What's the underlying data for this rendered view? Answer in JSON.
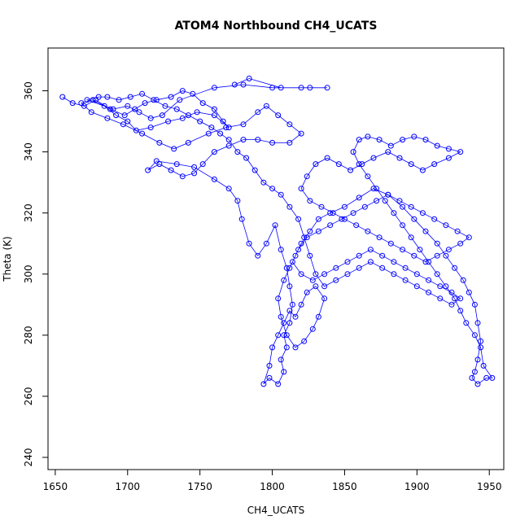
{
  "chart_data": {
    "type": "scatter",
    "title": "ATOM4 Northbound CH4_UCATS",
    "xlabel": "CH4_UCATS",
    "ylabel": "Theta (K)",
    "xlim": [
      1645,
      1960
    ],
    "ylim": [
      236,
      374
    ],
    "xticks": [
      1650,
      1700,
      1750,
      1800,
      1850,
      1900,
      1950
    ],
    "yticks": [
      240,
      260,
      280,
      300,
      320,
      340,
      360
    ],
    "grid": false,
    "legend": "none",
    "color": "#0000ff",
    "series": [
      {
        "values": [
          [
            1655,
            358
          ],
          [
            1662,
            356
          ],
          [
            1670,
            355
          ],
          [
            1678,
            357
          ],
          [
            1688,
            354
          ],
          [
            1698,
            352
          ],
          [
            1705,
            354
          ],
          [
            1712,
            356
          ],
          [
            1720,
            357
          ],
          [
            1730,
            358
          ],
          [
            1738,
            360
          ],
          [
            1745,
            359
          ],
          [
            1752,
            356
          ],
          [
            1760,
            354
          ],
          [
            1766,
            350
          ],
          [
            1770,
            348
          ],
          [
            1760,
            352
          ],
          [
            1748,
            353
          ],
          [
            1738,
            351
          ],
          [
            1728,
            350
          ],
          [
            1716,
            348
          ],
          [
            1706,
            347
          ],
          [
            1700,
            350
          ],
          [
            1692,
            352
          ],
          [
            1684,
            355
          ],
          [
            1676,
            357
          ],
          [
            1668,
            356
          ],
          [
            1675,
            353
          ],
          [
            1686,
            351
          ],
          [
            1697,
            349
          ],
          [
            1710,
            346
          ],
          [
            1722,
            343
          ],
          [
            1732,
            341
          ],
          [
            1742,
            343
          ],
          [
            1756,
            346
          ],
          [
            1768,
            348
          ],
          [
            1780,
            349
          ],
          [
            1790,
            353
          ],
          [
            1796,
            355
          ],
          [
            1804,
            352
          ],
          [
            1812,
            349
          ],
          [
            1820,
            346
          ],
          [
            1812,
            343
          ],
          [
            1800,
            343
          ],
          [
            1790,
            344
          ],
          [
            1780,
            344
          ],
          [
            1770,
            342
          ],
          [
            1760,
            340
          ],
          [
            1752,
            336
          ],
          [
            1746,
            333
          ],
          [
            1738,
            332
          ],
          [
            1730,
            334
          ],
          [
            1722,
            336
          ],
          [
            1714,
            334
          ],
          [
            1720,
            337
          ],
          [
            1734,
            336
          ],
          [
            1746,
            335
          ],
          [
            1760,
            331
          ],
          [
            1770,
            328
          ],
          [
            1776,
            324
          ],
          [
            1779,
            318
          ],
          [
            1784,
            310
          ],
          [
            1790,
            306
          ],
          [
            1796,
            310
          ],
          [
            1802,
            316
          ],
          [
            1806,
            308
          ],
          [
            1810,
            302
          ],
          [
            1812,
            296
          ],
          [
            1814,
            290
          ],
          [
            1812,
            284
          ],
          [
            1808,
            280
          ],
          [
            1810,
            276
          ],
          [
            1806,
            272
          ],
          [
            1808,
            268
          ],
          [
            1804,
            264
          ],
          [
            1798,
            266
          ],
          [
            1794,
            264
          ],
          [
            1798,
            270
          ],
          [
            1800,
            276
          ],
          [
            1804,
            280
          ],
          [
            1808,
            284
          ],
          [
            1812,
            288
          ],
          [
            1816,
            286
          ],
          [
            1820,
            290
          ],
          [
            1824,
            294
          ],
          [
            1830,
            296
          ],
          [
            1836,
            292
          ],
          [
            1832,
            286
          ],
          [
            1828,
            282
          ],
          [
            1822,
            278
          ],
          [
            1816,
            276
          ],
          [
            1810,
            280
          ],
          [
            1806,
            286
          ],
          [
            1804,
            292
          ],
          [
            1808,
            298
          ],
          [
            1812,
            302
          ],
          [
            1816,
            306
          ],
          [
            1820,
            310
          ],
          [
            1826,
            314
          ],
          [
            1832,
            318
          ],
          [
            1840,
            320
          ],
          [
            1850,
            322
          ],
          [
            1860,
            325
          ],
          [
            1870,
            328
          ],
          [
            1880,
            326
          ],
          [
            1890,
            322
          ],
          [
            1898,
            318
          ],
          [
            1906,
            314
          ],
          [
            1914,
            310
          ],
          [
            1920,
            306
          ],
          [
            1926,
            302
          ],
          [
            1932,
            298
          ],
          [
            1936,
            294
          ],
          [
            1940,
            290
          ],
          [
            1942,
            284
          ],
          [
            1944,
            278
          ],
          [
            1942,
            272
          ],
          [
            1940,
            268
          ],
          [
            1938,
            266
          ],
          [
            1942,
            264
          ],
          [
            1948,
            266
          ],
          [
            1952,
            266
          ],
          [
            1946,
            270
          ],
          [
            1944,
            276
          ],
          [
            1940,
            280
          ],
          [
            1934,
            284
          ],
          [
            1930,
            288
          ],
          [
            1926,
            292
          ],
          [
            1920,
            296
          ],
          [
            1914,
            300
          ],
          [
            1908,
            304
          ],
          [
            1902,
            308
          ],
          [
            1896,
            312
          ],
          [
            1890,
            316
          ],
          [
            1884,
            320
          ],
          [
            1878,
            324
          ],
          [
            1872,
            328
          ],
          [
            1866,
            332
          ],
          [
            1860,
            336
          ],
          [
            1856,
            340
          ],
          [
            1860,
            344
          ],
          [
            1866,
            345
          ],
          [
            1874,
            344
          ],
          [
            1882,
            342
          ],
          [
            1890,
            344
          ],
          [
            1898,
            345
          ],
          [
            1906,
            344
          ],
          [
            1914,
            342
          ],
          [
            1922,
            341
          ],
          [
            1930,
            340
          ],
          [
            1922,
            338
          ],
          [
            1912,
            336
          ],
          [
            1904,
            334
          ],
          [
            1896,
            336
          ],
          [
            1888,
            338
          ],
          [
            1880,
            340
          ],
          [
            1870,
            338
          ],
          [
            1862,
            336
          ],
          [
            1854,
            334
          ],
          [
            1846,
            336
          ],
          [
            1838,
            338
          ],
          [
            1830,
            336
          ],
          [
            1824,
            332
          ],
          [
            1820,
            328
          ],
          [
            1826,
            324
          ],
          [
            1834,
            322
          ],
          [
            1842,
            320
          ],
          [
            1850,
            318
          ],
          [
            1858,
            316
          ],
          [
            1866,
            314
          ],
          [
            1874,
            312
          ],
          [
            1882,
            310
          ],
          [
            1890,
            308
          ],
          [
            1898,
            306
          ],
          [
            1906,
            304
          ],
          [
            1914,
            306
          ],
          [
            1922,
            308
          ],
          [
            1930,
            310
          ],
          [
            1936,
            312
          ],
          [
            1928,
            314
          ],
          [
            1920,
            316
          ],
          [
            1912,
            318
          ],
          [
            1904,
            320
          ],
          [
            1896,
            322
          ],
          [
            1888,
            324
          ],
          [
            1880,
            326
          ],
          [
            1872,
            324
          ],
          [
            1864,
            322
          ],
          [
            1856,
            320
          ],
          [
            1848,
            318
          ],
          [
            1840,
            316
          ],
          [
            1832,
            314
          ],
          [
            1824,
            312
          ],
          [
            1818,
            308
          ],
          [
            1814,
            304
          ],
          [
            1820,
            300
          ],
          [
            1828,
            298
          ],
          [
            1836,
            300
          ],
          [
            1844,
            302
          ],
          [
            1852,
            304
          ],
          [
            1860,
            306
          ],
          [
            1868,
            308
          ],
          [
            1876,
            306
          ],
          [
            1884,
            304
          ],
          [
            1892,
            302
          ],
          [
            1900,
            300
          ],
          [
            1908,
            298
          ],
          [
            1916,
            296
          ],
          [
            1924,
            294
          ],
          [
            1930,
            292
          ],
          [
            1924,
            290
          ],
          [
            1916,
            292
          ],
          [
            1908,
            294
          ],
          [
            1900,
            296
          ],
          [
            1892,
            298
          ],
          [
            1884,
            300
          ],
          [
            1876,
            302
          ],
          [
            1868,
            304
          ],
          [
            1860,
            302
          ],
          [
            1852,
            300
          ],
          [
            1844,
            298
          ],
          [
            1836,
            296
          ],
          [
            1830,
            300
          ],
          [
            1826,
            306
          ],
          [
            1822,
            312
          ],
          [
            1818,
            318
          ],
          [
            1812,
            322
          ],
          [
            1806,
            326
          ],
          [
            1800,
            328
          ],
          [
            1794,
            330
          ],
          [
            1788,
            334
          ],
          [
            1782,
            338
          ],
          [
            1776,
            340
          ],
          [
            1770,
            344
          ],
          [
            1764,
            346
          ],
          [
            1758,
            348
          ],
          [
            1750,
            350
          ],
          [
            1742,
            352
          ],
          [
            1734,
            354
          ],
          [
            1726,
            355
          ],
          [
            1718,
            357
          ],
          [
            1710,
            359
          ],
          [
            1702,
            358
          ],
          [
            1694,
            357
          ],
          [
            1686,
            358
          ],
          [
            1680,
            358
          ],
          [
            1672,
            357
          ],
          [
            1690,
            354
          ],
          [
            1700,
            355
          ],
          [
            1708,
            353
          ],
          [
            1716,
            351
          ],
          [
            1724,
            352
          ],
          [
            1736,
            357
          ],
          [
            1760,
            361
          ],
          [
            1780,
            362
          ],
          [
            1800,
            361
          ],
          [
            1820,
            361
          ],
          [
            1838,
            361
          ],
          [
            1826,
            361
          ],
          [
            1806,
            361
          ],
          [
            1784,
            364
          ],
          [
            1774,
            362
          ]
        ]
      }
    ]
  }
}
